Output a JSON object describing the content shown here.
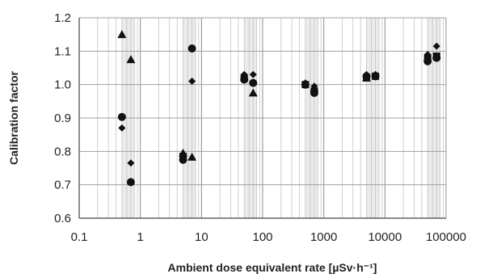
{
  "chart_data": {
    "type": "scatter",
    "title": "",
    "xlabel": "Ambient dose equivalent rate [µSv·h⁻¹]",
    "ylabel": "Calibration factor",
    "x_scale": "log",
    "xlim": [
      0.1,
      100000
    ],
    "ylim": [
      0.6,
      1.2
    ],
    "x_ticks": [
      0.1,
      1,
      10,
      100,
      1000,
      10000,
      100000
    ],
    "x_tick_labels": [
      "0.1",
      "1",
      "10",
      "100",
      "1000",
      "10000",
      "100000"
    ],
    "y_ticks": [
      0.6,
      0.7,
      0.8,
      0.9,
      1.0,
      1.1,
      1.2
    ],
    "y_tick_labels": [
      "0.6",
      "0.7",
      "0.8",
      "0.9",
      "1.0",
      "1.1",
      "1.2"
    ],
    "grid": true,
    "shaded_decade_bands": [
      [
        0.5,
        0.8
      ],
      [
        5,
        8
      ],
      [
        50,
        80
      ],
      [
        500,
        800
      ],
      [
        5000,
        8000
      ],
      [
        50000,
        80000
      ]
    ],
    "marker_color": "#111111",
    "series": [
      {
        "marker": "triangle",
        "points": [
          [
            0.5,
            1.15
          ],
          [
            0.7,
            1.075
          ],
          [
            5,
            0.795
          ],
          [
            7,
            0.783
          ],
          [
            70,
            0.975
          ],
          [
            700,
            0.99
          ],
          [
            5000,
            1.02
          ]
        ]
      },
      {
        "marker": "circle",
        "points": [
          [
            0.5,
            0.903
          ],
          [
            0.7,
            0.708
          ],
          [
            5,
            0.775
          ],
          [
            7,
            1.108
          ],
          [
            50,
            1.015
          ],
          [
            70,
            1.005
          ],
          [
            500,
            1.0
          ],
          [
            700,
            0.975
          ],
          [
            5000,
            1.025
          ],
          [
            7000,
            1.025
          ],
          [
            50000,
            1.07
          ],
          [
            70000,
            1.08
          ]
        ]
      },
      {
        "marker": "diamond",
        "points": [
          [
            0.5,
            0.87
          ],
          [
            0.7,
            0.765
          ],
          [
            5,
            0.78
          ],
          [
            7,
            1.01
          ],
          [
            50,
            1.03
          ],
          [
            70,
            1.03
          ],
          [
            500,
            1.005
          ],
          [
            700,
            0.995
          ],
          [
            5000,
            1.03
          ],
          [
            7000,
            1.03
          ],
          [
            50000,
            1.09
          ],
          [
            70000,
            1.115
          ]
        ]
      },
      {
        "marker": "square",
        "points": [
          [
            5,
            0.785
          ],
          [
            50,
            1.02
          ],
          [
            500,
            1.0
          ],
          [
            700,
            0.98
          ],
          [
            5000,
            1.02
          ],
          [
            7000,
            1.025
          ],
          [
            50000,
            1.08
          ],
          [
            70000,
            1.085
          ]
        ]
      }
    ]
  }
}
